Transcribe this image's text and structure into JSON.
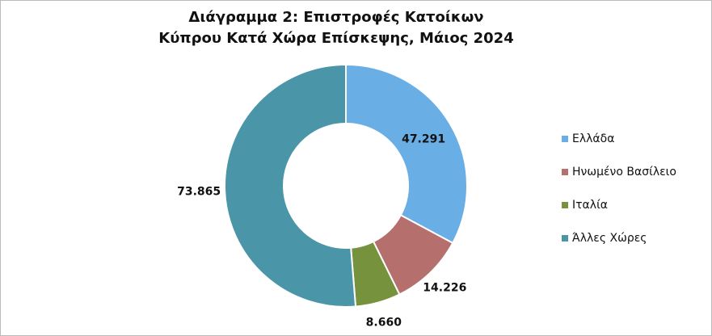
{
  "chart_data": {
    "type": "donut",
    "title": "Διάγραμμα 2: Επιστροφές Κατοίκων Κύπρου Κατά Χώρα Επίσκεψης, Μάιος 2024",
    "categories": [
      "Ελλάδα",
      "Ηνωμένο Βασίλειο",
      "Ιταλία",
      "Άλλες Χώρες"
    ],
    "values": [
      47291,
      14226,
      8660,
      73865
    ],
    "value_labels": [
      "47.291",
      "14.226",
      "8.660",
      "73.865"
    ],
    "colors": [
      "#6aaee6",
      "#b5706e",
      "#76923c",
      "#4a96a8"
    ],
    "legend": "right"
  }
}
